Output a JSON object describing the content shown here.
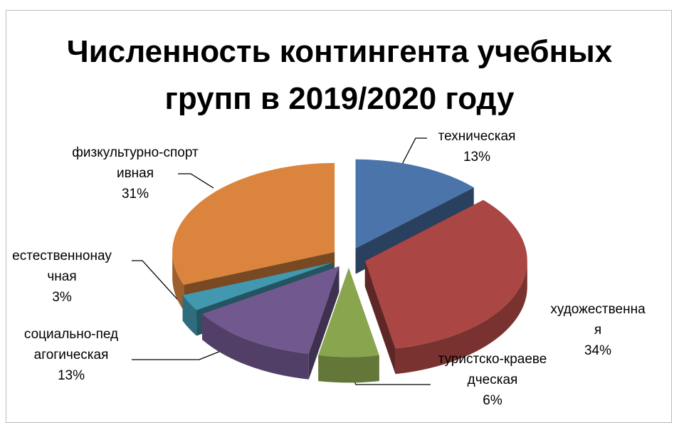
{
  "chart_data": {
    "type": "pie3d",
    "title": "Численность контингента учебных групп в 2019/2020 году",
    "categories": [
      "техническая",
      "художественная",
      "туристско-краеведческая",
      "социально-педагогическая",
      "естественнонаучная",
      "физкультурно-спортивная"
    ],
    "values": [
      13,
      34,
      6,
      13,
      3,
      31
    ],
    "value_labels": [
      "13%",
      "34%",
      "6%",
      "13%",
      "3%",
      "31%"
    ],
    "colors": [
      "#4a74aa",
      "#aa4643",
      "#89a54e",
      "#71588f",
      "#4198af",
      "#db843d"
    ]
  }
}
